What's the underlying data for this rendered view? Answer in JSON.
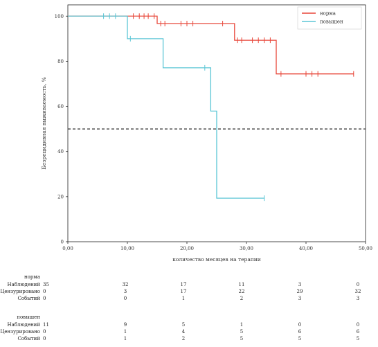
{
  "chart_data": {
    "type": "line",
    "xlabel": "количество месяцев на терапии",
    "ylabel": "Безрецидивная выживаемость, %",
    "xlim": [
      0,
      50
    ],
    "ylim": [
      0,
      105
    ],
    "xticks": [
      "0,00",
      "10,00",
      "20,00",
      "30,00",
      "40,00",
      "50,00"
    ],
    "yticks": [
      "0",
      "20",
      "40",
      "60",
      "80",
      "100"
    ],
    "reference_line": 50,
    "legend_position": "top-right",
    "series": [
      {
        "name": "норма",
        "color": "#e8473a",
        "steps": [
          [
            0,
            100
          ],
          [
            15,
            100
          ],
          [
            15,
            96.7
          ],
          [
            28,
            96.7
          ],
          [
            28,
            89.3
          ],
          [
            35,
            89.3
          ],
          [
            35,
            74.4
          ],
          [
            48,
            74.4
          ]
        ],
        "censored": [
          [
            11,
            100
          ],
          [
            12,
            100
          ],
          [
            12.8,
            100
          ],
          [
            13.5,
            100
          ],
          [
            14.5,
            100
          ],
          [
            15.6,
            96.7
          ],
          [
            16.3,
            96.7
          ],
          [
            19,
            96.7
          ],
          [
            20,
            96.7
          ],
          [
            21,
            96.7
          ],
          [
            26,
            96.7
          ],
          [
            28.5,
            89.3
          ],
          [
            29.2,
            89.3
          ],
          [
            31,
            89.3
          ],
          [
            32,
            89.3
          ],
          [
            33,
            89.3
          ],
          [
            34,
            89.3
          ],
          [
            35.8,
            74.4
          ],
          [
            40,
            74.4
          ],
          [
            41,
            74.4
          ],
          [
            42,
            74.4
          ],
          [
            48,
            74.4
          ]
        ]
      },
      {
        "name": "повышен",
        "color": "#5bc6d6",
        "steps": [
          [
            0,
            100
          ],
          [
            10,
            100
          ],
          [
            10,
            90
          ],
          [
            16,
            90
          ],
          [
            16,
            77.1
          ],
          [
            24,
            77.1
          ],
          [
            24,
            57.9
          ],
          [
            25,
            57.9
          ],
          [
            25,
            19.3
          ],
          [
            33,
            19.3
          ]
        ],
        "censored": [
          [
            6,
            100
          ],
          [
            7,
            100
          ],
          [
            8,
            100
          ],
          [
            10.5,
            90
          ],
          [
            23,
            77.1
          ],
          [
            33,
            19.3
          ]
        ]
      }
    ],
    "risk_table": {
      "times": [
        "0",
        "10",
        "20",
        "30",
        "40",
        "50"
      ],
      "row_labels": [
        "Наблюдений",
        "Цензурировано",
        "Событий"
      ],
      "groups": [
        {
          "name": "норма",
          "rows": [
            [
              "35",
              "32",
              "17",
              "11",
              "3",
              "0"
            ],
            [
              "0",
              "3",
              "17",
              "22",
              "29",
              "32"
            ],
            [
              "0",
              "0",
              "1",
              "2",
              "3",
              "3"
            ]
          ]
        },
        {
          "name": "повышен",
          "rows": [
            [
              "11",
              "9",
              "5",
              "1",
              "0",
              "0"
            ],
            [
              "0",
              "1",
              "4",
              "5",
              "6",
              "6"
            ],
            [
              "0",
              "1",
              "2",
              "5",
              "5",
              "5"
            ]
          ]
        }
      ]
    }
  }
}
